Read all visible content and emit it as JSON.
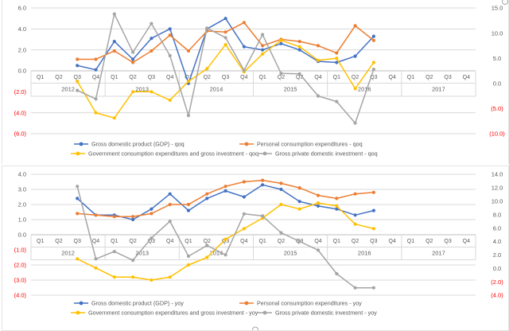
{
  "palette": {
    "axis_text": "#595959",
    "negative_text": "#ff0000",
    "gridline": "#d9d9d9",
    "axis_line": "#bfbfbf",
    "band_border": "#d9d9d9",
    "series_blue": "#4472c4",
    "series_orange": "#ed7d31",
    "series_yellow": "#ffc000",
    "series_gray": "#a5a5a5"
  },
  "x_axis": {
    "quarter_labels": [
      "Q1",
      "Q2",
      "Q3",
      "Q4",
      "Q1",
      "Q2",
      "Q3",
      "Q4",
      "Q1",
      "Q2",
      "Q3",
      "Q4",
      "Q1",
      "Q2",
      "Q3",
      "Q4",
      "Q1",
      "Q2",
      "Q3",
      "Q4",
      "Q1",
      "Q2",
      "Q3",
      "Q4"
    ],
    "year_labels": [
      "2012",
      "2013",
      "2014",
      "2015",
      "2016",
      "2017"
    ]
  },
  "chart_data": [
    {
      "id": "qoq",
      "type": "line",
      "title": "",
      "categories": [
        "2012 Q1",
        "2012 Q2",
        "2012 Q3",
        "2012 Q4",
        "2013 Q1",
        "2013 Q2",
        "2013 Q3",
        "2013 Q4",
        "2014 Q1",
        "2014 Q2",
        "2014 Q3",
        "2014 Q4",
        "2015 Q1",
        "2015 Q2",
        "2015 Q3",
        "2015 Q4",
        "2016 Q1",
        "2016 Q2",
        "2016 Q3",
        "2016 Q4",
        "2017 Q1",
        "2017 Q2",
        "2017 Q3",
        "2017 Q4"
      ],
      "left_axis": {
        "ticks": [
          {
            "label": "6.0",
            "v": 6
          },
          {
            "label": "4.0",
            "v": 4
          },
          {
            "label": "2.0",
            "v": 2
          },
          {
            "label": "0.0",
            "v": 0
          },
          {
            "label": "(2.0)",
            "v": -2
          },
          {
            "label": "(4.0)",
            "v": -4
          },
          {
            "label": "(6.0)",
            "v": -6
          }
        ],
        "max": 6,
        "min": -6
      },
      "right_axis": {
        "ticks": [
          {
            "label": "15.0",
            "v": 15
          },
          {
            "label": "10.0",
            "v": 10
          },
          {
            "label": "5.0",
            "v": 5
          },
          {
            "label": "0.0",
            "v": 0
          },
          {
            "label": "(5.0)",
            "v": -5
          },
          {
            "label": "(10.0)",
            "v": -10
          }
        ],
        "max": 15,
        "min": -10
      },
      "legend_position": "bottom",
      "grid": true,
      "series": [
        {
          "key": "gdp",
          "name": "Gross domestic product (GDP) - qoq",
          "color": "#4472c4",
          "axis": "left",
          "values": [
            null,
            null,
            0.5,
            0.1,
            2.8,
            1.1,
            3.1,
            4.0,
            -1.2,
            4.0,
            5.0,
            2.3,
            2.0,
            2.6,
            2.0,
            0.9,
            0.8,
            1.4,
            3.3,
            null,
            null,
            null,
            null,
            null
          ]
        },
        {
          "key": "pce",
          "name": "Personal consumption expenditures - qoq",
          "color": "#ed7d31",
          "axis": "left",
          "values": [
            null,
            null,
            1.1,
            1.1,
            1.9,
            0.8,
            1.9,
            3.4,
            1.9,
            3.8,
            3.7,
            4.6,
            2.4,
            3.0,
            2.8,
            2.4,
            1.7,
            4.3,
            2.9,
            null,
            null,
            null,
            null,
            null
          ]
        },
        {
          "key": "gov",
          "name": "Government consumption expenditures and gross investment - qoq",
          "color": "#ffc000",
          "axis": "left",
          "values": [
            null,
            null,
            -1.0,
            -4.0,
            -4.5,
            -2.0,
            -2.0,
            -2.8,
            -1.0,
            0.2,
            2.5,
            -0.1,
            1.6,
            2.9,
            2.3,
            1.0,
            1.2,
            -1.7,
            0.8,
            null,
            null,
            null,
            null,
            null
          ]
        },
        {
          "key": "inv",
          "name": "Gross private domestic investment - qoq",
          "color": "#a5a5a5",
          "axis": "right",
          "values": [
            null,
            null,
            -1.4,
            -3.1,
            13.8,
            6.2,
            11.9,
            5.5,
            -6.4,
            11.0,
            9.1,
            2.6,
            9.7,
            2.0,
            1.9,
            -2.5,
            -3.6,
            -7.9,
            2.8,
            null,
            null,
            null,
            null,
            null
          ]
        }
      ]
    },
    {
      "id": "yoy",
      "type": "line",
      "title": "",
      "categories": [
        "2012 Q1",
        "2012 Q2",
        "2012 Q3",
        "2012 Q4",
        "2013 Q1",
        "2013 Q2",
        "2013 Q3",
        "2013 Q4",
        "2014 Q1",
        "2014 Q2",
        "2014 Q3",
        "2014 Q4",
        "2015 Q1",
        "2015 Q2",
        "2015 Q3",
        "2015 Q4",
        "2016 Q1",
        "2016 Q2",
        "2016 Q3",
        "2016 Q4",
        "2017 Q1",
        "2017 Q2",
        "2017 Q3",
        "2017 Q4"
      ],
      "left_axis": {
        "ticks": [
          {
            "label": "4.0",
            "v": 4
          },
          {
            "label": "3.0",
            "v": 3
          },
          {
            "label": "2.0",
            "v": 2
          },
          {
            "label": "1.0",
            "v": 1
          },
          {
            "label": "0.0",
            "v": 0
          },
          {
            "label": "(1.0)",
            "v": -1
          },
          {
            "label": "(2.0)",
            "v": -2
          },
          {
            "label": "(3.0)",
            "v": -3
          },
          {
            "label": "(4.0)",
            "v": -4
          }
        ],
        "max": 4,
        "min": -4
      },
      "right_axis": {
        "ticks": [
          {
            "label": "14.0",
            "v": 14
          },
          {
            "label": "12.0",
            "v": 12
          },
          {
            "label": "10.0",
            "v": 10
          },
          {
            "label": "8.0",
            "v": 8
          },
          {
            "label": "6.0",
            "v": 6
          },
          {
            "label": "4.0",
            "v": 4
          },
          {
            "label": "2.0",
            "v": 2
          },
          {
            "label": "0.0",
            "v": 0
          },
          {
            "label": "(2.0)",
            "v": -2
          },
          {
            "label": "(4.0)",
            "v": -4
          }
        ],
        "max": 14,
        "min": -4
      },
      "legend_position": "bottom",
      "grid": true,
      "series": [
        {
          "key": "gdp",
          "name": "Gross domestic product (GDP) - yoy",
          "color": "#4472c4",
          "axis": "left",
          "values": [
            null,
            null,
            2.4,
            1.3,
            1.3,
            1.0,
            1.7,
            2.7,
            1.6,
            2.4,
            2.9,
            2.5,
            3.3,
            3.0,
            2.2,
            1.9,
            1.7,
            1.3,
            1.6,
            null,
            null,
            null,
            null,
            null
          ]
        },
        {
          "key": "pce",
          "name": "Personal consumption expenditures - yoy",
          "color": "#ed7d31",
          "axis": "left",
          "values": [
            null,
            null,
            1.4,
            1.3,
            1.2,
            1.2,
            1.4,
            2.0,
            2.0,
            2.7,
            3.2,
            3.5,
            3.6,
            3.4,
            3.1,
            2.6,
            2.4,
            2.7,
            2.8,
            null,
            null,
            null,
            null,
            null
          ]
        },
        {
          "key": "gov",
          "name": "Government consumption expenditures and gross investment - yoy",
          "color": "#ffc000",
          "axis": "left",
          "values": [
            null,
            null,
            -1.6,
            -2.2,
            -2.8,
            -2.8,
            -3.0,
            -2.8,
            -2.0,
            -1.5,
            -0.3,
            0.4,
            1.1,
            2.0,
            1.7,
            2.1,
            1.9,
            0.7,
            0.4,
            null,
            null,
            null,
            null,
            null
          ]
        },
        {
          "key": "inv",
          "name": "Gross private domestic investment - yoy",
          "color": "#a5a5a5",
          "axis": "right",
          "values": [
            null,
            null,
            12.2,
            1.4,
            2.5,
            1.2,
            4.5,
            7.0,
            1.8,
            3.4,
            2.0,
            8.1,
            7.8,
            5.3,
            4.0,
            2.7,
            -0.8,
            -2.9,
            -2.9,
            null,
            null,
            null,
            null,
            null
          ]
        }
      ]
    }
  ]
}
